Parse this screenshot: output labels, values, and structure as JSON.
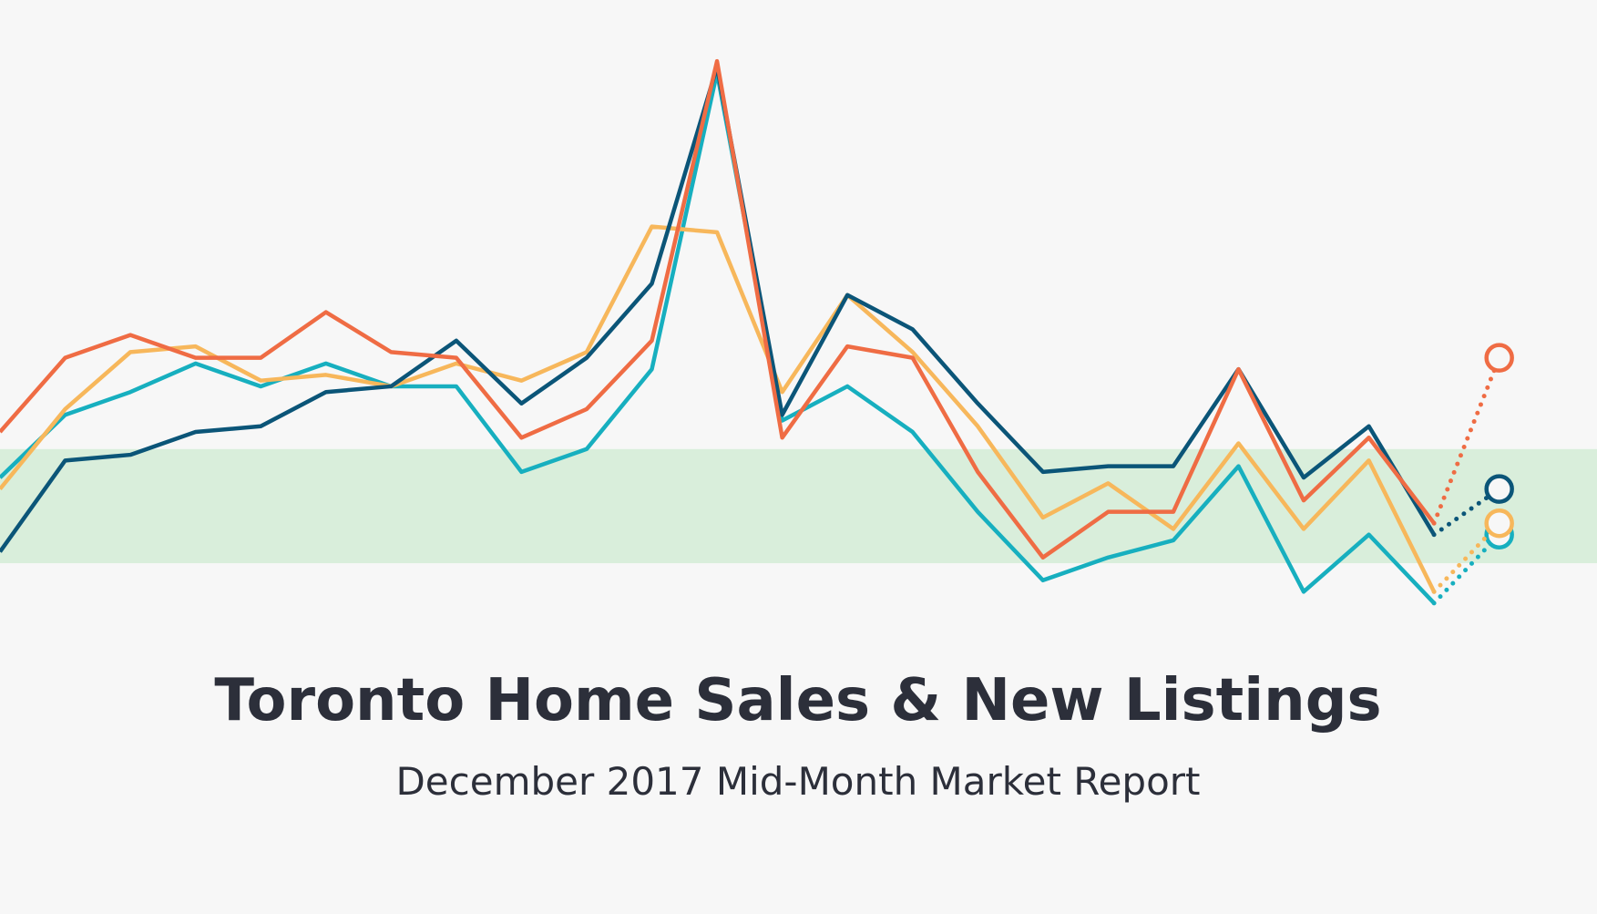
{
  "chart_data": {
    "type": "line",
    "title": "Toronto Home Sales & New Listings",
    "subtitle": "December 2017 Mid-Month Market Report",
    "categories": [
      null,
      null,
      null,
      null,
      null,
      null,
      null,
      null,
      null,
      null,
      null,
      null,
      null,
      null,
      null,
      null,
      null,
      null,
      null,
      null,
      null,
      null,
      null,
      null
    ],
    "ylim": [
      0,
      100
    ],
    "band": {
      "range": [
        12,
        32
      ],
      "color": "#d9eedb"
    },
    "series": [
      {
        "color": "#17afbf",
        "values": [
          27,
          38,
          42,
          47,
          43,
          47,
          43,
          43,
          28,
          32,
          46,
          98,
          37,
          43,
          35,
          21,
          9,
          13,
          16,
          29,
          7,
          17,
          5,
          17
        ]
      },
      {
        "color": "#f7b75b",
        "values": [
          25,
          39,
          49,
          50,
          44,
          45,
          43,
          47,
          44,
          49,
          71,
          70,
          42,
          59,
          49,
          36,
          20,
          26,
          18,
          33,
          18,
          30,
          7,
          19
        ]
      },
      {
        "color": "#0b5578",
        "values": [
          14,
          30,
          31,
          35,
          36,
          42,
          43,
          51,
          40,
          48,
          61,
          99,
          38,
          59,
          53,
          40,
          28,
          29,
          29,
          46,
          27,
          36,
          17,
          25
        ]
      },
      {
        "color": "#ef6c44",
        "values": [
          35,
          48,
          52,
          48,
          48,
          56,
          49,
          48,
          34,
          39,
          51,
          100,
          34,
          50,
          48,
          28,
          13,
          21,
          21,
          46,
          23,
          34,
          19,
          48
        ]
      }
    ]
  }
}
